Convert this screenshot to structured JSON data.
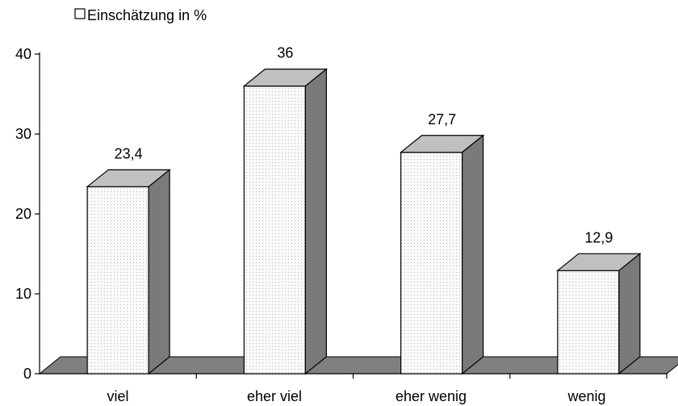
{
  "chart_data": {
    "type": "bar",
    "categories": [
      "viel",
      "eher viel",
      "eher wenig",
      "wenig"
    ],
    "series": [
      {
        "name": "Einschätzung in %",
        "values": [
          23.4,
          36,
          27.7,
          12.9
        ]
      }
    ],
    "data_labels": [
      "23,4",
      "36",
      "27,7",
      "12,9"
    ],
    "yticks": [
      "0",
      "10",
      "20",
      "30",
      "40"
    ],
    "ylim": [
      0,
      40
    ],
    "legend_position": "top-left",
    "grid": false,
    "style": "3d",
    "colors": {
      "front": "#fafafa",
      "top": "#c0c0c0",
      "side": "#7a7a7a",
      "floor": "#808080",
      "dots": "#b4b4b4"
    }
  }
}
